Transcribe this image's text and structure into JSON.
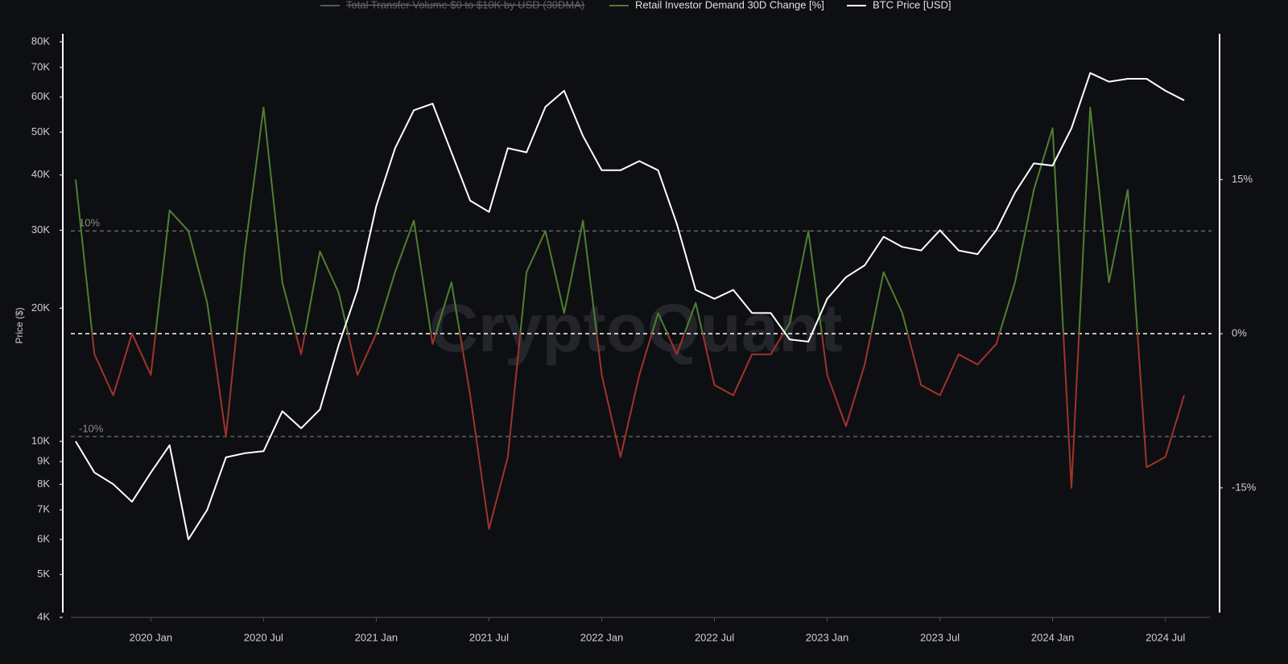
{
  "chart_data": {
    "type": "line",
    "y_axis_label": "Price ($)",
    "watermark": "CryptoQuant",
    "x": [
      "2019-09",
      "2019-10",
      "2019-11",
      "2019-12",
      "2020-01",
      "2020-02",
      "2020-03",
      "2020-04",
      "2020-05",
      "2020-06",
      "2020-07",
      "2020-08",
      "2020-09",
      "2020-10",
      "2020-11",
      "2020-12",
      "2021-01",
      "2021-02",
      "2021-03",
      "2021-04",
      "2021-05",
      "2021-06",
      "2021-07",
      "2021-08",
      "2021-09",
      "2021-10",
      "2021-11",
      "2021-12",
      "2022-01",
      "2022-02",
      "2022-03",
      "2022-04",
      "2022-05",
      "2022-06",
      "2022-07",
      "2022-08",
      "2022-09",
      "2022-10",
      "2022-11",
      "2022-12",
      "2023-01",
      "2023-02",
      "2023-03",
      "2023-04",
      "2023-05",
      "2023-06",
      "2023-07",
      "2023-08",
      "2023-09",
      "2023-10",
      "2023-11",
      "2023-12",
      "2024-01",
      "2024-02",
      "2024-03",
      "2024-04",
      "2024-05",
      "2024-06",
      "2024-07",
      "2024-08"
    ],
    "xlim": [
      "2019-09",
      "2024-08"
    ],
    "xticks": [
      {
        "value": "2020-01",
        "label": "2020 Jan"
      },
      {
        "value": "2020-07",
        "label": "2020 Jul"
      },
      {
        "value": "2021-01",
        "label": "2021 Jan"
      },
      {
        "value": "2021-07",
        "label": "2021 Jul"
      },
      {
        "value": "2022-01",
        "label": "2022 Jan"
      },
      {
        "value": "2022-07",
        "label": "2022 Jul"
      },
      {
        "value": "2023-01",
        "label": "2023 Jan"
      },
      {
        "value": "2023-07",
        "label": "2023 Jul"
      },
      {
        "value": "2024-01",
        "label": "2024 Jan"
      },
      {
        "value": "2024-07",
        "label": "2024 Jul"
      }
    ],
    "log_scale_y": true,
    "ylim": [
      4000,
      80000
    ],
    "yticks": [
      {
        "value": 4000,
        "label": "4K"
      },
      {
        "value": 5000,
        "label": "5K"
      },
      {
        "value": 6000,
        "label": "6K"
      },
      {
        "value": 7000,
        "label": "7K"
      },
      {
        "value": 8000,
        "label": "8K"
      },
      {
        "value": 9000,
        "label": "9K"
      },
      {
        "value": 10000,
        "label": "10K"
      },
      {
        "value": 20000,
        "label": "20K"
      },
      {
        "value": 30000,
        "label": "30K"
      },
      {
        "value": 40000,
        "label": "40K"
      },
      {
        "value": 50000,
        "label": "50K"
      },
      {
        "value": 60000,
        "label": "60K"
      },
      {
        "value": 70000,
        "label": "70K"
      },
      {
        "value": 80000,
        "label": "80K"
      }
    ],
    "y2lim": [
      -27.6,
      28.4
    ],
    "y2ticks": [
      {
        "value": 15,
        "label": "15%"
      },
      {
        "value": 0,
        "label": "0%"
      },
      {
        "value": -15,
        "label": "-15%"
      }
    ],
    "reference_lines": [
      {
        "value": 10,
        "label": "10%"
      },
      {
        "value": 0
      },
      {
        "value": -10,
        "label": "-10%"
      }
    ],
    "legend": "top",
    "series": [
      {
        "name": "Total Transfer Volume $0 to $10K by USD (30DMA)",
        "color": "#555860",
        "hidden": true
      },
      {
        "name": "Retail Investor Demand 30D Change [%]",
        "color": "#4f7f32",
        "negative_color": "#a0332b",
        "axis": "y2",
        "values": [
          15,
          -2,
          -6,
          0,
          -4,
          12,
          10,
          3,
          -10,
          8,
          22,
          5,
          -2,
          8,
          4,
          -4,
          0,
          6,
          11,
          -1,
          5,
          -6,
          -19,
          -12,
          6,
          10,
          2,
          11,
          -4,
          -12,
          -4,
          2,
          -2,
          3,
          -5,
          -6,
          -2,
          -2,
          1,
          10,
          -4,
          -9,
          -3,
          6,
          2,
          -5,
          -6,
          -2,
          -3,
          -1,
          5,
          14,
          20,
          -15,
          22,
          5,
          14,
          -13,
          -12,
          -6
        ]
      },
      {
        "name": "BTC Price [USD]",
        "color": "#ffffff",
        "values": [
          10000,
          8500,
          8000,
          7300,
          8500,
          9800,
          6000,
          7000,
          9200,
          9400,
          9500,
          11700,
          10700,
          11800,
          16500,
          22000,
          34000,
          46000,
          56000,
          58000,
          45000,
          35000,
          33000,
          46000,
          45000,
          57000,
          62000,
          49000,
          41000,
          41000,
          43000,
          41000,
          31000,
          22000,
          21000,
          22000,
          19500,
          19500,
          17000,
          16800,
          21000,
          23500,
          25000,
          29000,
          27500,
          27000,
          30000,
          27000,
          26500,
          30000,
          36500,
          42500,
          42000,
          51000,
          68000,
          65000,
          66000,
          66000,
          62000,
          59000
        ]
      }
    ]
  }
}
